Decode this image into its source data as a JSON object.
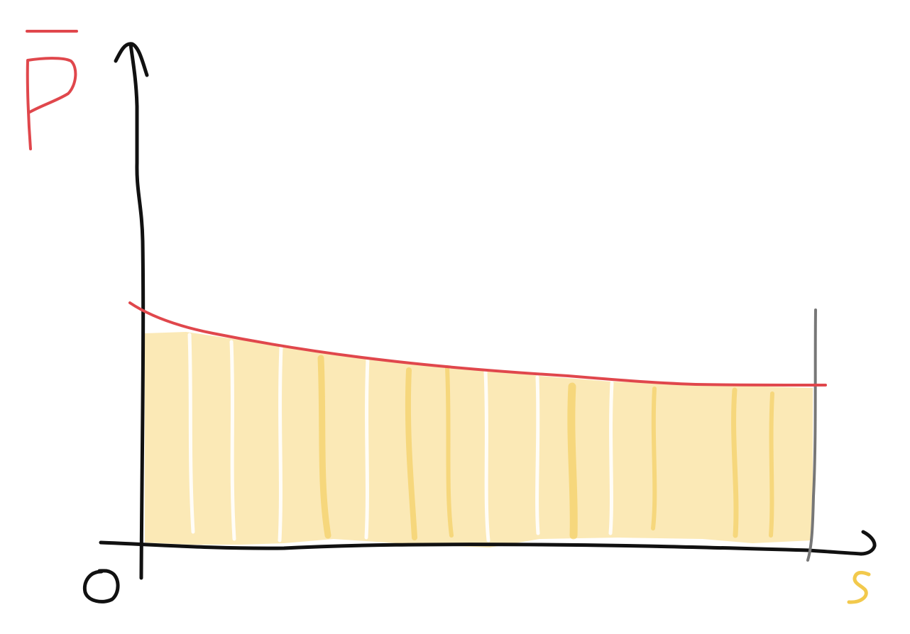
{
  "diagram": {
    "y_axis_label": "P̄",
    "x_axis_label": "s",
    "origin_label": "0"
  },
  "colors": {
    "curve": "#e0474c",
    "fill": "#f7d77a",
    "fill_streak": "#f2c94c",
    "axis": "#111111",
    "boundary": "#777777",
    "x_label": "#f2c94c"
  }
}
